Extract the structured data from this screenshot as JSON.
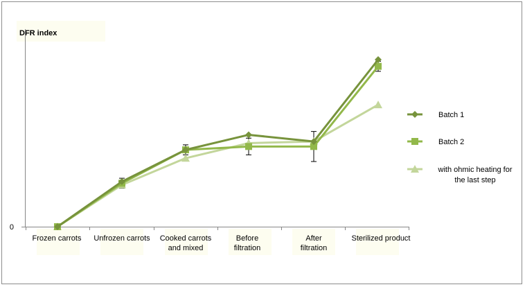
{
  "chart_data": {
    "type": "line",
    "ylabel": "DFR index",
    "y_ticks": [
      "0"
    ],
    "ylim": [
      0,
      100
    ],
    "categories": [
      "Frozen carrots",
      "Unfrozen carrots",
      "Cooked carrots and mixed",
      "Before filtration",
      "After filtration",
      "Sterilized product"
    ],
    "legend_position": "right",
    "series": [
      {
        "name": "Batch 1",
        "marker": "diamond",
        "color": "#77933c",
        "values": [
          0,
          27,
          46,
          55,
          51,
          100
        ]
      },
      {
        "name": "Batch 2",
        "marker": "square",
        "color": "#92b84a",
        "values": [
          0,
          26,
          46,
          48,
          48,
          96
        ],
        "error": [
          0,
          3,
          3,
          5,
          9,
          3
        ]
      },
      {
        "name": "with ohmic heating for the last step",
        "marker": "triangle",
        "color": "#c3d69b",
        "values": [
          0,
          25,
          41,
          50,
          51,
          73
        ]
      }
    ]
  }
}
